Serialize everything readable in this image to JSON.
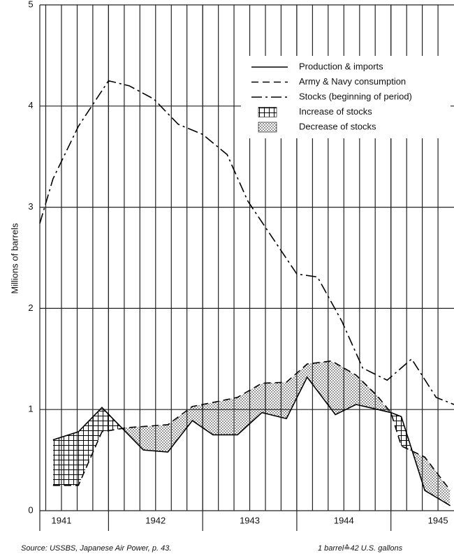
{
  "chart_data": {
    "type": "line",
    "ylabel": "Millions of barrels",
    "xlim": [
      1941.27,
      1945.67
    ],
    "ylim": [
      0,
      5
    ],
    "yticks": [
      0,
      1,
      2,
      3,
      4,
      5
    ],
    "xticks": [
      1942,
      1943,
      1944,
      1945
    ],
    "xgrid": [
      1941.333,
      1941.5,
      1941.667,
      1941.833,
      1942,
      1942.167,
      1942.333,
      1942.5,
      1942.667,
      1942.833,
      1943,
      1943.167,
      1943.333,
      1943.5,
      1943.667,
      1943.833,
      1944,
      1944.167,
      1944.333,
      1944.5,
      1944.667,
      1944.833,
      1945,
      1945.167,
      1945.333,
      1945.5
    ],
    "years": [
      1941,
      1942,
      1943,
      1944,
      1945
    ],
    "grid": true,
    "legend": "upper right",
    "series": [
      {
        "name": "Production & imports",
        "color": "#000000",
        "dash": "solid",
        "x": [
          1941.41,
          1941.68,
          1941.93,
          1942.37,
          1942.63,
          1942.89,
          1943.11,
          1943.37,
          1943.63,
          1943.89,
          1944.11,
          1944.41,
          1944.63,
          1945.0,
          1945.11,
          1945.36,
          1945.63
        ],
        "values": [
          0.7,
          0.78,
          1.02,
          0.6,
          0.58,
          0.89,
          0.75,
          0.75,
          0.97,
          0.91,
          1.32,
          0.95,
          1.05,
          0.97,
          0.93,
          0.2,
          0.05
        ]
      },
      {
        "name": "Army & Navy consumption",
        "color": "#000000",
        "dash": "dashed",
        "x": [
          1941.41,
          1941.68,
          1941.93,
          1942.19,
          1942.63,
          1942.89,
          1943.11,
          1943.37,
          1943.63,
          1943.89,
          1944.11,
          1944.37,
          1944.63,
          1944.85,
          1945.0,
          1945.11,
          1945.36,
          1945.63
        ],
        "values": [
          0.25,
          0.25,
          0.78,
          0.82,
          0.85,
          1.03,
          1.07,
          1.12,
          1.26,
          1.27,
          1.45,
          1.48,
          1.34,
          1.14,
          0.97,
          0.64,
          0.53,
          0.2
        ]
      },
      {
        "name": "Stocks (beginning of period)",
        "color": "#000000",
        "dash": "dashdot",
        "x": [
          1941.27,
          1941.41,
          1941.68,
          1942.0,
          1942.22,
          1942.48,
          1942.74,
          1943.0,
          1943.26,
          1943.48,
          1943.74,
          1944.0,
          1944.22,
          1944.48,
          1944.7,
          1944.96,
          1945.22,
          1945.48,
          1945.67
        ],
        "values": [
          2.84,
          3.28,
          3.8,
          4.25,
          4.2,
          4.07,
          3.82,
          3.72,
          3.52,
          3.06,
          2.7,
          2.34,
          2.31,
          1.87,
          1.41,
          1.29,
          1.5,
          1.12,
          1.05
        ]
      }
    ],
    "fills": [
      {
        "name": "Increase of stocks",
        "pattern": "crosshatch"
      },
      {
        "name": "Decrease of stocks",
        "pattern": "dots"
      }
    ],
    "source": "Source:  USSBS, Japanese Air Power, p. 43.",
    "note": "1 barrel≙42 U.S. gallons"
  }
}
